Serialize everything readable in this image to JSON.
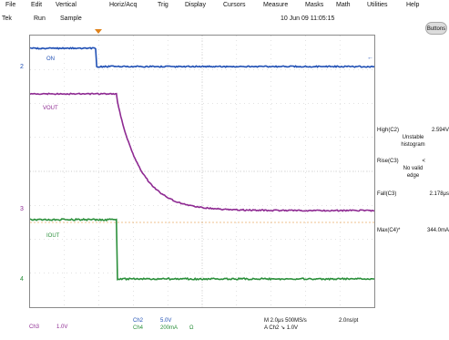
{
  "menu": {
    "file": "File",
    "edit": "Edit",
    "vertical": "Vertical",
    "horiz": "Horiz/Acq",
    "trig": "Trig",
    "display": "Display",
    "cursors": "Cursors",
    "measure": "Measure",
    "masks": "Masks",
    "math": "Math",
    "utilities": "Utilities",
    "help": "Help"
  },
  "status": {
    "brand": "Tek",
    "run": "Run",
    "mode": "Sample",
    "datetime": "10 Jun 09 11:05:15",
    "buttons": "Buttons"
  },
  "waves": {
    "on": "ON",
    "vout": "VOUT",
    "iout": "IOUT"
  },
  "markers": {
    "ch2": "2",
    "ch3": "3",
    "ch4": "4"
  },
  "measurements": {
    "high_name": "High(C2)",
    "high_val": "2.594V",
    "high_note1": "Unstable",
    "high_note2": "histogram",
    "rise_name": "Rise(C3)",
    "rise_val": "<",
    "rise_note1": "No valid",
    "rise_note2": "edge",
    "fall_name": "Fall(C3)",
    "fall_val": "2.178μs",
    "max_name": "Max(C4)*",
    "max_val": "344.0mA"
  },
  "readout": {
    "ch3_name": "Ch3",
    "ch3_scale": "1.0V",
    "ch2_name": "Ch2",
    "ch2_scale": "5.0V",
    "ch4_name": "Ch4",
    "ch4_scale": "200mA",
    "ch4_unit": "Ω",
    "timebase": "M 2.0μs 500MS/s",
    "resolution": "2.0ns/pt",
    "trigger": "A  Ch2  ↘  1.0V"
  },
  "colors": {
    "ch2": "#1f4fb4",
    "ch3": "#8e2a92",
    "ch4": "#2a8f3a",
    "trigger": "#e0821a",
    "grid": "#c0c0c0"
  }
}
